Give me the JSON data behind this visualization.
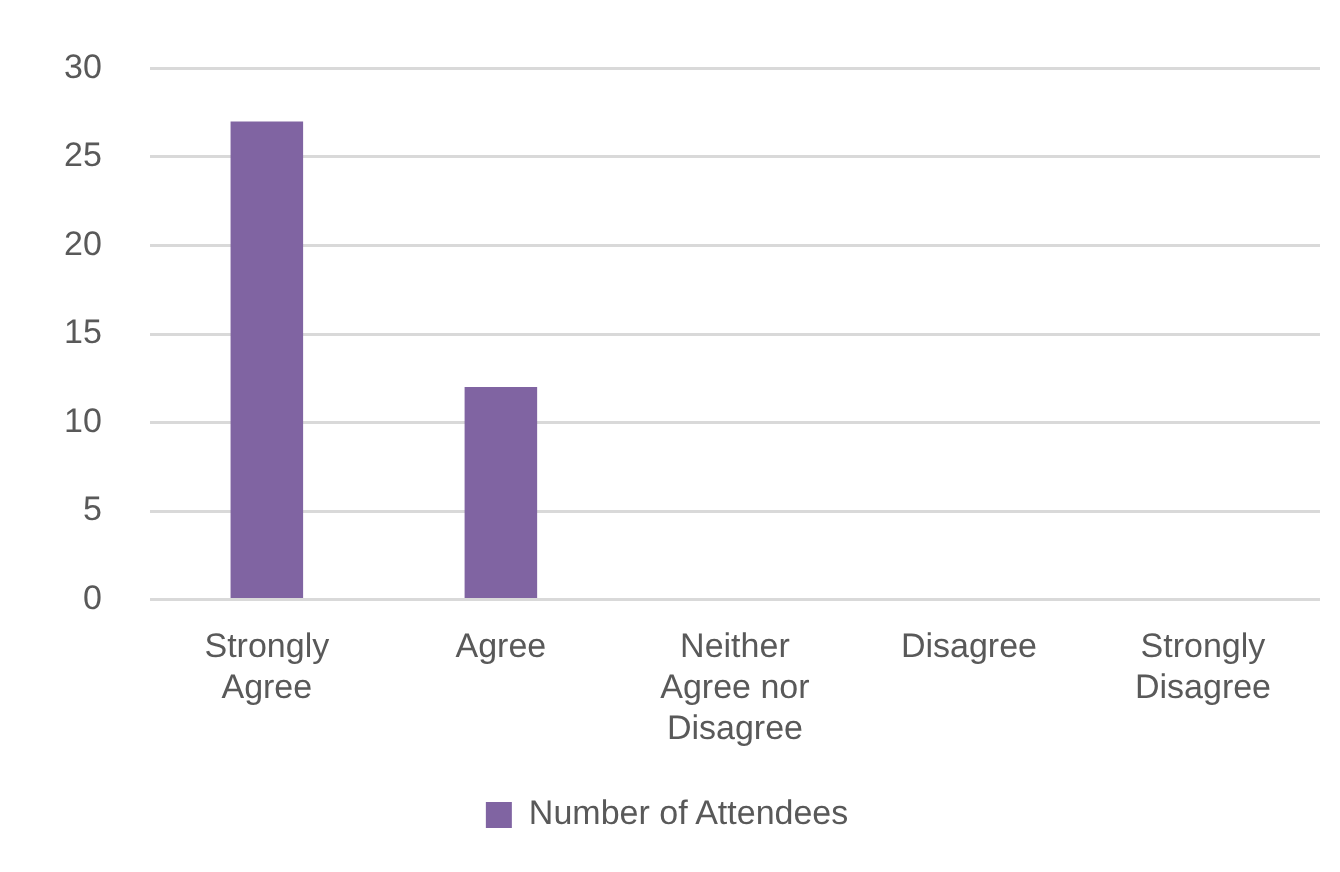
{
  "chart_data": {
    "type": "bar",
    "categories": [
      "Strongly Agree",
      "Agree",
      "Neither Agree nor Disagree",
      "Disagree",
      "Strongly Disagree"
    ],
    "series": [
      {
        "name": "Number of Attendees",
        "color": "#8064a2",
        "values": [
          27,
          12,
          0,
          0,
          0
        ]
      }
    ],
    "ylim": [
      0,
      30
    ],
    "yticks": [
      0,
      5,
      10,
      15,
      20,
      25,
      30
    ],
    "grid": "y",
    "legend": "bottom"
  }
}
